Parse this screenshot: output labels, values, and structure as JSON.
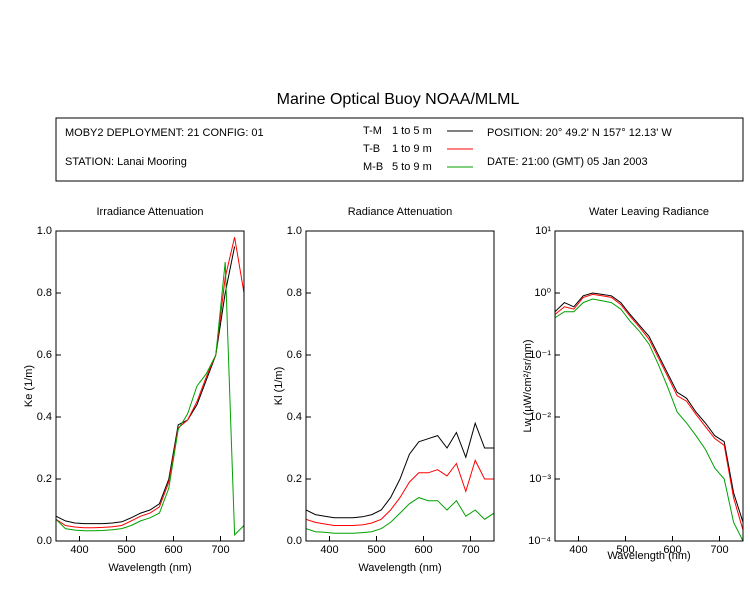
{
  "header": {
    "title": "Marine Optical Buoy NOAA/MLML",
    "deployment": "MOBY2 DEPLOYMENT: 21 CONFIG: 01",
    "station": "STATION: Lanai Mooring",
    "position": "POSITION: 20° 49.2' N   157° 12.13' W",
    "date": "DATE: 21:00 (GMT) 05 Jan 2003"
  },
  "chart_data": [
    {
      "type": "line",
      "title": "Irradiance Attenuation",
      "xlabel": "Wavelength (nm)",
      "ylabel": "Ke  (1/m)",
      "x": [
        350,
        370,
        390,
        410,
        430,
        450,
        470,
        490,
        510,
        530,
        550,
        570,
        590,
        610,
        630,
        650,
        670,
        690,
        710,
        730,
        750
      ],
      "xlim": [
        350,
        750
      ],
      "xticks": [
        400,
        500,
        600,
        700
      ],
      "ylim": [
        0,
        1
      ],
      "yticks": [
        {
          "value": 0,
          "label": "0.0"
        },
        0.2,
        0.4,
        0.6,
        0.8,
        {
          "value": 1,
          "label": "1.0"
        }
      ],
      "series": [
        {
          "name": "T-M",
          "label": "1 to 5  m",
          "color": "#000000",
          "values": [
            0.08,
            0.065,
            0.058,
            0.056,
            0.056,
            0.056,
            0.058,
            0.062,
            0.075,
            0.09,
            0.1,
            0.12,
            0.2,
            0.375,
            0.39,
            0.44,
            0.52,
            0.6,
            0.8,
            0.95,
            null
          ]
        },
        {
          "name": "T-B",
          "label": "1 to 9  m",
          "color": "#ff0000",
          "values": [
            0.07,
            0.05,
            0.045,
            0.043,
            0.043,
            0.044,
            0.046,
            0.05,
            0.065,
            0.08,
            0.09,
            0.11,
            0.19,
            0.365,
            0.39,
            0.45,
            0.53,
            0.6,
            0.85,
            0.98,
            0.8
          ]
        },
        {
          "name": "M-B",
          "label": "5 to 9  m",
          "color": "#00a000",
          "values": [
            0.07,
            0.04,
            0.035,
            0.033,
            0.033,
            0.034,
            0.036,
            0.04,
            0.05,
            0.065,
            0.075,
            0.09,
            0.17,
            0.36,
            0.41,
            0.5,
            0.54,
            0.6,
            0.9,
            0.02,
            0.05
          ]
        }
      ]
    },
    {
      "type": "line",
      "title": "Radiance Attenuation",
      "xlabel": "Wavelength (nm)",
      "ylabel": "Kl  (1/m)",
      "x": [
        350,
        370,
        390,
        410,
        430,
        450,
        470,
        490,
        510,
        530,
        550,
        570,
        590,
        610,
        630,
        650,
        670,
        690,
        710,
        730,
        750
      ],
      "xlim": [
        350,
        750
      ],
      "xticks": [
        400,
        500,
        600,
        700
      ],
      "ylim": [
        0,
        1
      ],
      "yticks": [
        {
          "value": 0,
          "label": "0.0"
        },
        0.2,
        0.4,
        0.6,
        0.8,
        {
          "value": 1,
          "label": "1.0"
        }
      ],
      "series": [
        {
          "name": "T-M",
          "color": "#000000",
          "values": [
            0.1,
            0.085,
            0.08,
            0.075,
            0.075,
            0.075,
            0.078,
            0.085,
            0.1,
            0.14,
            0.2,
            0.28,
            0.32,
            0.33,
            0.34,
            0.3,
            0.35,
            0.27,
            0.38,
            0.3,
            0.3
          ]
        },
        {
          "name": "T-B",
          "color": "#ff0000",
          "values": [
            0.07,
            0.06,
            0.055,
            0.05,
            0.05,
            0.05,
            0.052,
            0.058,
            0.07,
            0.1,
            0.14,
            0.19,
            0.22,
            0.22,
            0.23,
            0.21,
            0.25,
            0.16,
            0.26,
            0.2,
            0.2
          ]
        },
        {
          "name": "M-B",
          "color": "#00a000",
          "values": [
            0.04,
            0.03,
            0.028,
            0.025,
            0.025,
            0.025,
            0.027,
            0.03,
            0.04,
            0.06,
            0.09,
            0.12,
            0.14,
            0.13,
            0.13,
            0.1,
            0.13,
            0.08,
            0.1,
            0.07,
            0.09
          ]
        }
      ]
    },
    {
      "type": "line",
      "title": "Water Leaving Radiance",
      "xlabel": "Wavelength (nm)",
      "ylabel": "Lw  (µW/cm²/sr/nm)",
      "log": true,
      "x": [
        350,
        370,
        390,
        410,
        430,
        450,
        470,
        490,
        510,
        530,
        550,
        570,
        590,
        610,
        630,
        650,
        670,
        690,
        710,
        730,
        750
      ],
      "xlim": [
        350,
        750
      ],
      "xticks": [
        400,
        500,
        600,
        700
      ],
      "ylim": [
        0.0001,
        10
      ],
      "yticks": [
        {
          "value": 0.0001,
          "label": "10⁻⁴"
        },
        {
          "value": 0.001,
          "label": "10⁻³"
        },
        {
          "value": 0.01,
          "label": "10⁻²"
        },
        {
          "value": 0.1,
          "label": "10⁻¹"
        },
        {
          "value": 1,
          "label": "10⁰"
        },
        {
          "value": 10,
          "label": "10¹"
        }
      ],
      "series": [
        {
          "name": "T-M",
          "color": "#000000",
          "values": [
            0.5,
            0.7,
            0.6,
            0.9,
            1.0,
            0.95,
            0.9,
            0.7,
            0.45,
            0.3,
            0.2,
            0.1,
            0.05,
            0.025,
            0.02,
            0.012,
            0.008,
            0.005,
            0.004,
            0.0006,
            0.0002
          ]
        },
        {
          "name": "T-B",
          "color": "#ff0000",
          "values": [
            0.45,
            0.6,
            0.55,
            0.85,
            0.95,
            0.9,
            0.85,
            0.65,
            0.42,
            0.28,
            0.18,
            0.09,
            0.045,
            0.022,
            0.018,
            0.011,
            0.007,
            0.0045,
            0.0035,
            0.0005,
            0.00015
          ]
        },
        {
          "name": "M-B",
          "color": "#00a000",
          "values": [
            0.4,
            0.5,
            0.5,
            0.7,
            0.8,
            0.75,
            0.7,
            0.55,
            0.35,
            0.24,
            0.15,
            0.07,
            0.03,
            0.012,
            0.008,
            0.005,
            0.003,
            0.0015,
            0.001,
            0.0002,
            0.0001
          ]
        }
      ]
    }
  ]
}
